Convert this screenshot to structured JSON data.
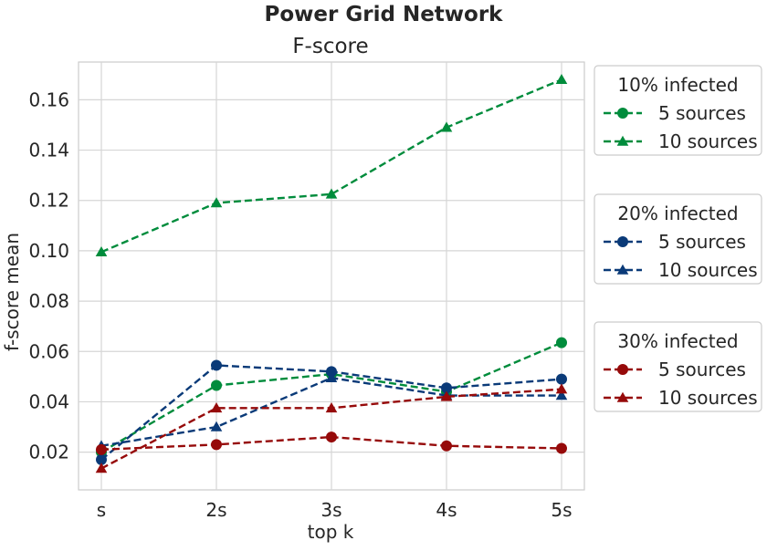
{
  "suptitle": "Power Grid Network",
  "chart_data": {
    "type": "line",
    "title": "F-score",
    "xlabel": "top k",
    "ylabel": "f-score mean",
    "categories": [
      "s",
      "2s",
      "3s",
      "4s",
      "5s"
    ],
    "ylim": [
      0.005,
      0.175
    ],
    "yticks": [
      0.02,
      0.04,
      0.06,
      0.08,
      0.1,
      0.12,
      0.14,
      0.16
    ],
    "ytick_labels": [
      "0.02",
      "0.04",
      "0.06",
      "0.08",
      "0.10",
      "0.12",
      "0.14",
      "0.16"
    ],
    "grid": true,
    "legend_placement": "right, outside plot",
    "legend_groups": [
      {
        "title": "10% infected",
        "color": "#008c3c",
        "entries": [
          {
            "label": "5 sources",
            "marker": "circle"
          },
          {
            "label": "10 sources",
            "marker": "triangle"
          }
        ]
      },
      {
        "title": "20% infected",
        "color": "#0a3a78",
        "entries": [
          {
            "label": "5 sources",
            "marker": "circle"
          },
          {
            "label": "10 sources",
            "marker": "triangle"
          }
        ]
      },
      {
        "title": "30% infected",
        "color": "#960a0a",
        "entries": [
          {
            "label": "5 sources",
            "marker": "circle"
          },
          {
            "label": "10 sources",
            "marker": "triangle"
          }
        ]
      }
    ],
    "series": [
      {
        "group": "10% infected",
        "name": "5 sources",
        "color": "#008c3c",
        "marker": "circle",
        "values": [
          0.02,
          0.0465,
          0.051,
          0.044,
          0.0635
        ]
      },
      {
        "group": "10% infected",
        "name": "10 sources",
        "color": "#008c3c",
        "marker": "triangle",
        "values": [
          0.0995,
          0.119,
          0.1225,
          0.149,
          0.168
        ]
      },
      {
        "group": "20% infected",
        "name": "5 sources",
        "color": "#0a3a78",
        "marker": "circle",
        "values": [
          0.017,
          0.0545,
          0.052,
          0.0455,
          0.049
        ]
      },
      {
        "group": "20% infected",
        "name": "10 sources",
        "color": "#0a3a78",
        "marker": "triangle",
        "values": [
          0.0225,
          0.03,
          0.0495,
          0.0425,
          0.0425
        ]
      },
      {
        "group": "30% infected",
        "name": "5 sources",
        "color": "#960a0a",
        "marker": "circle",
        "values": [
          0.021,
          0.023,
          0.026,
          0.0225,
          0.0215
        ]
      },
      {
        "group": "30% infected",
        "name": "10 sources",
        "color": "#960a0a",
        "marker": "triangle",
        "values": [
          0.0135,
          0.0375,
          0.0375,
          0.042,
          0.045
        ]
      }
    ]
  }
}
